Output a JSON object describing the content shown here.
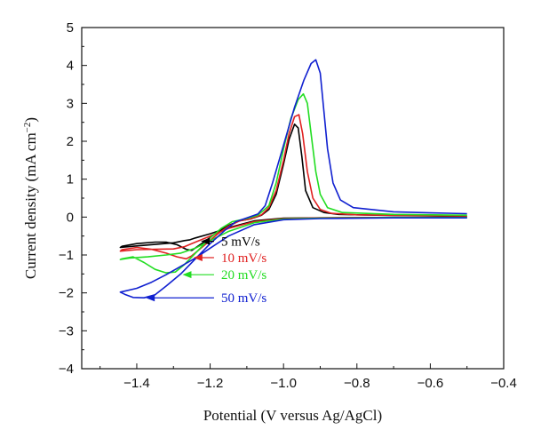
{
  "chart_data": {
    "type": "line",
    "xlabel": "Potential (V versus Ag/AgCl)",
    "ylabel": "Current density (mA cm",
    "ylabel_sup": "−2",
    "ylabel_tail": ")",
    "xlim": [
      -1.55,
      -0.4
    ],
    "ylim": [
      -4,
      5
    ],
    "xticks": [
      {
        "v": -1.4,
        "label": "−1.4"
      },
      {
        "v": -1.2,
        "label": "−1.2"
      },
      {
        "v": -1.0,
        "label": "−1.0"
      },
      {
        "v": -0.8,
        "label": "−0.8"
      },
      {
        "v": -0.6,
        "label": "−0.6"
      },
      {
        "v": -0.4,
        "label": "−0.4"
      }
    ],
    "yticks": [
      {
        "v": -4,
        "label": "−4"
      },
      {
        "v": -3,
        "label": "−3"
      },
      {
        "v": -2,
        "label": "−2"
      },
      {
        "v": -1,
        "label": "−1"
      },
      {
        "v": 0,
        "label": "0"
      },
      {
        "v": 1,
        "label": "1"
      },
      {
        "v": 2,
        "label": "2"
      },
      {
        "v": 3,
        "label": "3"
      },
      {
        "v": 4,
        "label": "4"
      },
      {
        "v": 5,
        "label": "5"
      }
    ],
    "grid": false,
    "series": [
      {
        "name": "5 mV/s",
        "color": "#000000",
        "points": [
          [
            -0.5,
            -0.01
          ],
          [
            -0.7,
            -0.01
          ],
          [
            -0.9,
            -0.02
          ],
          [
            -1.0,
            -0.03
          ],
          [
            -1.08,
            -0.1
          ],
          [
            -1.15,
            -0.28
          ],
          [
            -1.2,
            -0.44
          ],
          [
            -1.24,
            -0.55
          ],
          [
            -1.255,
            -0.6
          ],
          [
            -1.27,
            -0.62
          ],
          [
            -1.3,
            -0.68
          ],
          [
            -1.35,
            -0.72
          ],
          [
            -1.4,
            -0.76
          ],
          [
            -1.445,
            -0.8
          ],
          [
            -1.44,
            -0.77
          ],
          [
            -1.4,
            -0.7
          ],
          [
            -1.35,
            -0.66
          ],
          [
            -1.32,
            -0.66
          ],
          [
            -1.29,
            -0.73
          ],
          [
            -1.265,
            -0.85
          ],
          [
            -1.25,
            -0.88
          ],
          [
            -1.22,
            -0.68
          ],
          [
            -1.18,
            -0.4
          ],
          [
            -1.15,
            -0.22
          ],
          [
            -1.12,
            -0.1
          ],
          [
            -1.09,
            -0.05
          ],
          [
            -1.06,
            0.05
          ],
          [
            -1.04,
            0.2
          ],
          [
            -1.02,
            0.6
          ],
          [
            -1.0,
            1.4
          ],
          [
            -0.985,
            2.05
          ],
          [
            -0.97,
            2.45
          ],
          [
            -0.96,
            2.35
          ],
          [
            -0.95,
            1.6
          ],
          [
            -0.94,
            0.7
          ],
          [
            -0.92,
            0.25
          ],
          [
            -0.89,
            0.12
          ],
          [
            -0.85,
            0.07
          ],
          [
            -0.7,
            0.04
          ],
          [
            -0.5,
            0.02
          ]
        ]
      },
      {
        "name": "10 mV/s",
        "color": "#e02020",
        "points": [
          [
            -0.5,
            -0.01
          ],
          [
            -0.7,
            -0.01
          ],
          [
            -0.9,
            -0.02
          ],
          [
            -1.0,
            -0.04
          ],
          [
            -1.08,
            -0.12
          ],
          [
            -1.15,
            -0.3
          ],
          [
            -1.2,
            -0.5
          ],
          [
            -1.24,
            -0.66
          ],
          [
            -1.27,
            -0.78
          ],
          [
            -1.3,
            -0.84
          ],
          [
            -1.35,
            -0.85
          ],
          [
            -1.4,
            -0.86
          ],
          [
            -1.445,
            -0.9
          ],
          [
            -1.44,
            -0.86
          ],
          [
            -1.4,
            -0.8
          ],
          [
            -1.36,
            -0.85
          ],
          [
            -1.32,
            -0.95
          ],
          [
            -1.29,
            -1.05
          ],
          [
            -1.265,
            -1.1
          ],
          [
            -1.25,
            -1.02
          ],
          [
            -1.22,
            -0.78
          ],
          [
            -1.18,
            -0.45
          ],
          [
            -1.15,
            -0.24
          ],
          [
            -1.12,
            -0.1
          ],
          [
            -1.09,
            -0.05
          ],
          [
            -1.06,
            0.06
          ],
          [
            -1.04,
            0.25
          ],
          [
            -1.02,
            0.7
          ],
          [
            -1.0,
            1.5
          ],
          [
            -0.985,
            2.2
          ],
          [
            -0.97,
            2.65
          ],
          [
            -0.958,
            2.7
          ],
          [
            -0.948,
            2.2
          ],
          [
            -0.935,
            1.2
          ],
          [
            -0.92,
            0.5
          ],
          [
            -0.9,
            0.2
          ],
          [
            -0.87,
            0.1
          ],
          [
            -0.8,
            0.06
          ],
          [
            -0.65,
            0.04
          ],
          [
            -0.5,
            0.03
          ]
        ]
      },
      {
        "name": "20 mV/s",
        "color": "#22dd22",
        "points": [
          [
            -0.5,
            -0.01
          ],
          [
            -0.7,
            -0.01
          ],
          [
            -0.9,
            -0.03
          ],
          [
            -1.0,
            -0.05
          ],
          [
            -1.08,
            -0.15
          ],
          [
            -1.15,
            -0.38
          ],
          [
            -1.2,
            -0.62
          ],
          [
            -1.24,
            -0.82
          ],
          [
            -1.28,
            -0.95
          ],
          [
            -1.32,
            -1.0
          ],
          [
            -1.37,
            -1.05
          ],
          [
            -1.42,
            -1.08
          ],
          [
            -1.445,
            -1.12
          ],
          [
            -1.44,
            -1.1
          ],
          [
            -1.41,
            -1.05
          ],
          [
            -1.38,
            -1.2
          ],
          [
            -1.35,
            -1.38
          ],
          [
            -1.32,
            -1.47
          ],
          [
            -1.295,
            -1.45
          ],
          [
            -1.27,
            -1.25
          ],
          [
            -1.24,
            -0.95
          ],
          [
            -1.2,
            -0.55
          ],
          [
            -1.17,
            -0.3
          ],
          [
            -1.14,
            -0.12
          ],
          [
            -1.1,
            -0.04
          ],
          [
            -1.07,
            0.05
          ],
          [
            -1.04,
            0.3
          ],
          [
            -1.02,
            0.9
          ],
          [
            -1.0,
            1.8
          ],
          [
            -0.98,
            2.6
          ],
          [
            -0.96,
            3.1
          ],
          [
            -0.946,
            3.25
          ],
          [
            -0.935,
            3.0
          ],
          [
            -0.925,
            2.2
          ],
          [
            -0.912,
            1.2
          ],
          [
            -0.9,
            0.6
          ],
          [
            -0.88,
            0.25
          ],
          [
            -0.84,
            0.12
          ],
          [
            -0.7,
            0.07
          ],
          [
            -0.5,
            0.05
          ]
        ]
      },
      {
        "name": "50 mV/s",
        "color": "#1020d0",
        "points": [
          [
            -0.5,
            -0.02
          ],
          [
            -0.7,
            -0.02
          ],
          [
            -0.9,
            -0.04
          ],
          [
            -1.0,
            -0.07
          ],
          [
            -1.08,
            -0.2
          ],
          [
            -1.15,
            -0.5
          ],
          [
            -1.2,
            -0.82
          ],
          [
            -1.24,
            -1.08
          ],
          [
            -1.28,
            -1.3
          ],
          [
            -1.32,
            -1.52
          ],
          [
            -1.36,
            -1.72
          ],
          [
            -1.4,
            -1.88
          ],
          [
            -1.445,
            -1.98
          ],
          [
            -1.43,
            -2.05
          ],
          [
            -1.41,
            -2.12
          ],
          [
            -1.38,
            -2.13
          ],
          [
            -1.35,
            -2.05
          ],
          [
            -1.32,
            -1.82
          ],
          [
            -1.28,
            -1.5
          ],
          [
            -1.24,
            -1.1
          ],
          [
            -1.2,
            -0.7
          ],
          [
            -1.16,
            -0.35
          ],
          [
            -1.13,
            -0.12
          ],
          [
            -1.1,
            -0.02
          ],
          [
            -1.07,
            0.08
          ],
          [
            -1.05,
            0.3
          ],
          [
            -1.03,
            0.9
          ],
          [
            -1.0,
            1.9
          ],
          [
            -0.97,
            2.9
          ],
          [
            -0.945,
            3.6
          ],
          [
            -0.925,
            4.05
          ],
          [
            -0.912,
            4.15
          ],
          [
            -0.9,
            3.8
          ],
          [
            -0.89,
            2.8
          ],
          [
            -0.88,
            1.8
          ],
          [
            -0.865,
            0.9
          ],
          [
            -0.845,
            0.45
          ],
          [
            -0.81,
            0.25
          ],
          [
            -0.7,
            0.14
          ],
          [
            -0.6,
            0.11
          ],
          [
            -0.5,
            0.09
          ]
        ]
      }
    ],
    "annotations": [
      {
        "text": "5 mV/s",
        "series": 0,
        "point": [
          -1.235,
          -0.64
        ]
      },
      {
        "text": "10 mV/s",
        "series": 1,
        "point": [
          -1.255,
          -1.07
        ]
      },
      {
        "text": "20 mV/s",
        "series": 2,
        "point": [
          -1.285,
          -1.52
        ]
      },
      {
        "text": "50 mV/s",
        "series": 3,
        "point": [
          -1.385,
          -2.13
        ]
      }
    ]
  }
}
